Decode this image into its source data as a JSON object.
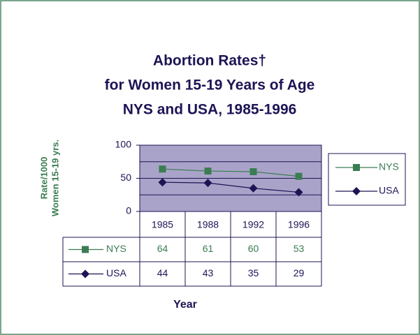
{
  "chart_data": {
    "type": "line",
    "title": [
      "Abortion Rates†",
      "for Women 15-19 Years of Age",
      "NYS and USA, 1985-1996"
    ],
    "y_label": [
      "Rate/1000",
      "Women 15-19 yrs."
    ],
    "x_label": "Year",
    "categories": [
      "1985",
      "1988",
      "1992",
      "1996"
    ],
    "series": [
      {
        "name": "NYS",
        "color": "#3a7d52",
        "marker": "square",
        "values": [
          64,
          61,
          60,
          53
        ]
      },
      {
        "name": "USA",
        "color": "#1c1454",
        "marker": "diamond",
        "values": [
          44,
          43,
          35,
          29
        ]
      }
    ],
    "ylim": [
      0,
      100
    ],
    "yticks": [
      0,
      50,
      100
    ],
    "minor_yticks": [
      25,
      75
    ],
    "grid": true,
    "legend": "right",
    "data_table": true
  }
}
